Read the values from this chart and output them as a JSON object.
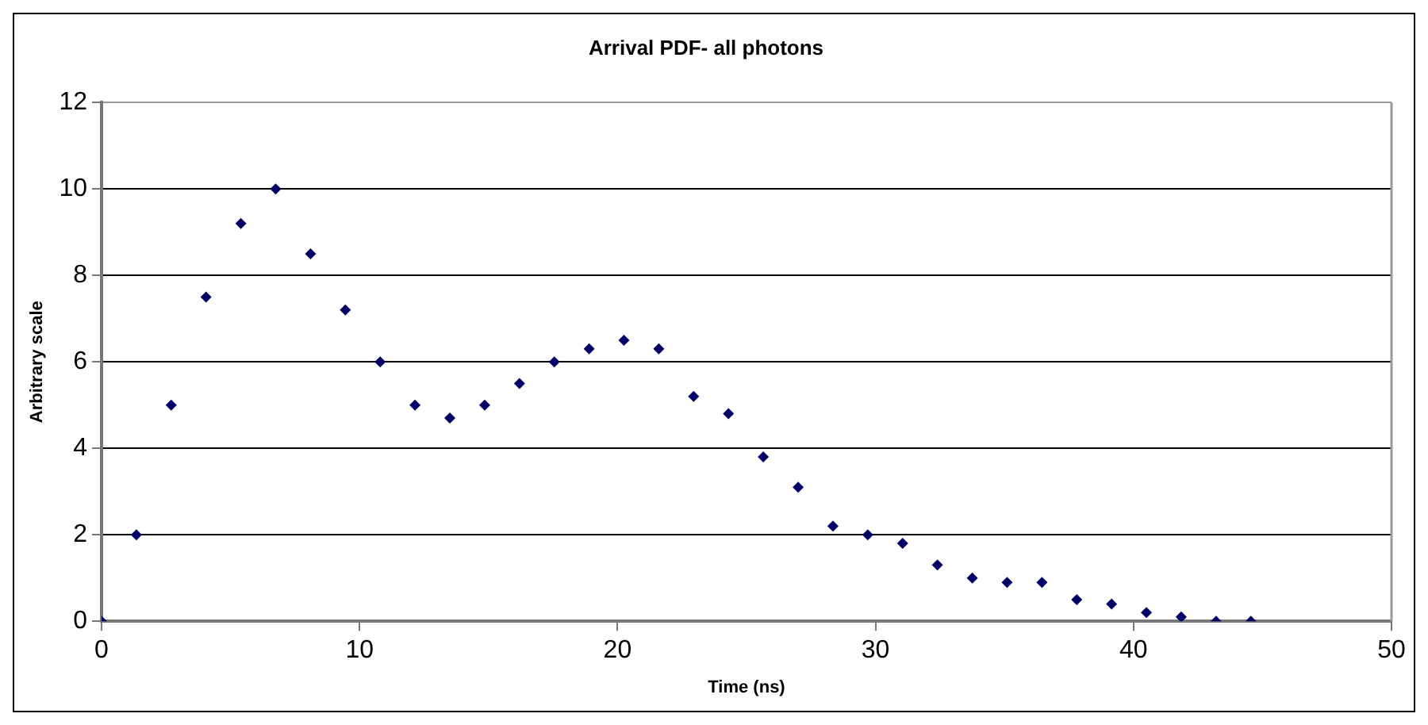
{
  "chart_data": {
    "type": "scatter",
    "title": "Arrival PDF- all photons",
    "xlabel": "Time (ns)",
    "ylabel": "Arbitrary scale",
    "x": [
      0,
      1.35,
      2.7,
      4.05,
      5.4,
      6.75,
      8.1,
      9.45,
      10.8,
      12.15,
      13.5,
      14.85,
      16.2,
      17.55,
      18.9,
      20.25,
      21.6,
      22.95,
      24.3,
      25.65,
      27,
      28.35,
      29.7,
      31.05,
      32.4,
      33.75,
      35.1,
      36.45,
      37.8,
      39.15,
      40.5,
      41.85,
      43.2,
      44.55
    ],
    "series": [
      {
        "color": "#000066",
        "values": [
          0,
          2,
          5,
          7.5,
          9.2,
          10,
          8.5,
          7.2,
          6,
          5,
          4.7,
          5,
          5.5,
          6,
          6.3,
          6.5,
          6.3,
          5.2,
          4.8,
          3.8,
          3.1,
          2.2,
          2.0,
          1.8,
          1.3,
          1.0,
          0.9,
          0.9,
          0.5,
          0.4,
          0.2,
          0.1,
          0,
          0
        ]
      }
    ],
    "xlim": [
      0,
      50
    ],
    "xticks": [
      0,
      10,
      20,
      30,
      40,
      50
    ],
    "ylim": [
      0,
      12
    ],
    "yticks": [
      0,
      2,
      4,
      6,
      8,
      10,
      12
    ],
    "grid": "y",
    "legend": false,
    "marker": "diamond"
  }
}
